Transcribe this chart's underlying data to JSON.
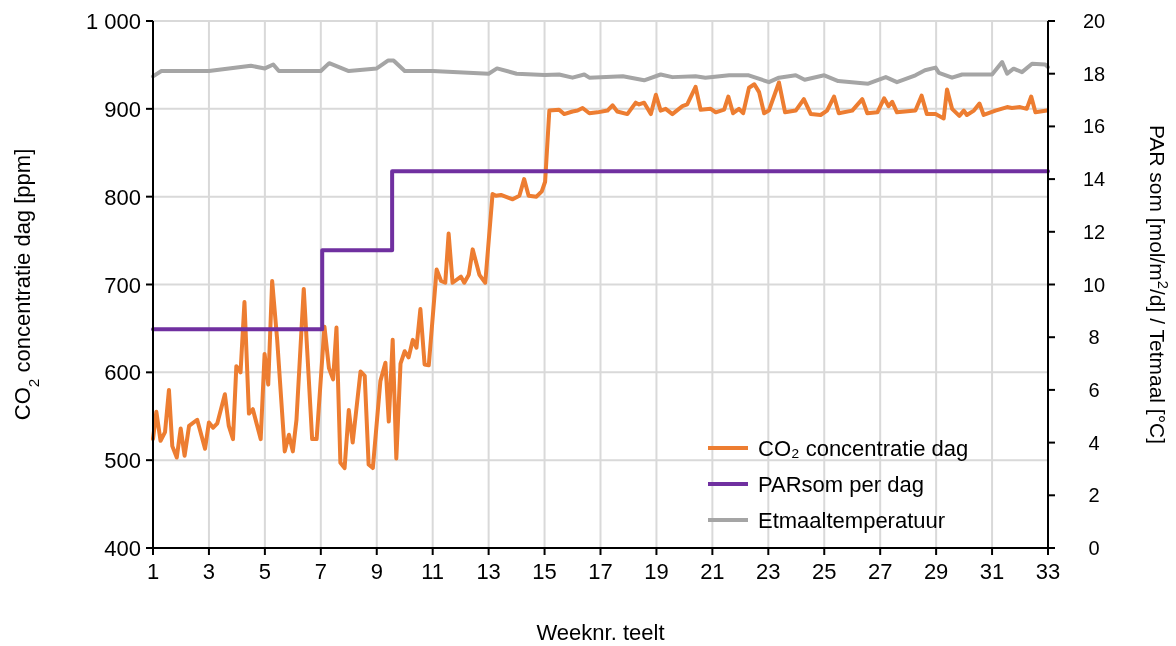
{
  "chart_data": {
    "type": "line",
    "xlabel": "Weeknr. teelt",
    "ylabel": "CO$_{2}$ concentratie dag [ppm]",
    "y2label": "PAR som [mol/m$^{2}$/d] / Tetmaal [°C]",
    "xlim": [
      1,
      33
    ],
    "xticks": [
      1,
      3,
      5,
      7,
      9,
      11,
      13,
      15,
      17,
      19,
      21,
      23,
      25,
      27,
      29,
      31,
      33
    ],
    "ylim": [
      400,
      1000
    ],
    "yticks": [
      {
        "value": 400,
        "label": "400"
      },
      {
        "value": 500,
        "label": "500"
      },
      {
        "value": 600,
        "label": "600"
      },
      {
        "value": 700,
        "label": "700"
      },
      {
        "value": 800,
        "label": "800"
      },
      {
        "value": 900,
        "label": "900"
      },
      {
        "value": 1000,
        "label": "1 000"
      }
    ],
    "y2lim": [
      0,
      20
    ],
    "y2ticks": [
      0,
      2,
      4,
      6,
      8,
      10,
      12,
      14,
      16,
      18,
      20
    ],
    "grid": true,
    "legend": "bottom right",
    "line_style": "solid",
    "series": [
      {
        "name": "CO₂ concentratie dag",
        "color": "#ed7d31",
        "axis": "y",
        "x": [
          1.0,
          1.12,
          1.27,
          1.43,
          1.57,
          1.69,
          1.85,
          1.99,
          2.13,
          2.29,
          2.58,
          2.86,
          3.0,
          3.15,
          3.3,
          3.57,
          3.71,
          3.86,
          3.98,
          4.13,
          4.27,
          4.43,
          4.57,
          4.85,
          4.99,
          5.12,
          5.26,
          5.44,
          5.71,
          5.86,
          6.0,
          6.13,
          6.39,
          6.69,
          6.85,
          7.13,
          7.29,
          7.44,
          7.56,
          7.7,
          7.85,
          8.0,
          8.14,
          8.42,
          8.57,
          8.71,
          8.86,
          9.13,
          9.31,
          9.43,
          9.57,
          9.7,
          9.85,
          10.0,
          10.14,
          10.29,
          10.42,
          10.56,
          10.71,
          10.86,
          11.14,
          11.3,
          11.45,
          11.57,
          11.71,
          12.01,
          12.13,
          12.29,
          12.43,
          12.67,
          12.88,
          13.14,
          13.26,
          13.44,
          13.86,
          14.1,
          14.27,
          14.43,
          14.71,
          14.9,
          15.02,
          15.17,
          15.52,
          15.7,
          16.0,
          16.18,
          16.36,
          16.6,
          16.89,
          17.25,
          17.43,
          17.6,
          17.96,
          18.26,
          18.38,
          18.56,
          18.8,
          18.98,
          19.15,
          19.33,
          19.57,
          19.93,
          20.1,
          20.4,
          20.58,
          20.94,
          21.12,
          21.42,
          21.57,
          21.74,
          21.95,
          22.1,
          22.31,
          22.5,
          22.67,
          22.85,
          23.02,
          23.38,
          23.6,
          23.98,
          24.27,
          24.52,
          24.87,
          25.1,
          25.35,
          25.52,
          26.0,
          26.36,
          26.54,
          26.9,
          27.14,
          27.3,
          27.43,
          27.6,
          28.26,
          28.48,
          28.67,
          28.98,
          29.27,
          29.39,
          29.57,
          29.83,
          29.99,
          30.1,
          30.35,
          30.55,
          30.7,
          31.12,
          31.54,
          31.71,
          32.0,
          32.24,
          32.4,
          32.55,
          32.96
        ],
        "values": [
          524,
          555,
          522,
          532,
          580,
          516,
          503,
          536,
          505,
          539,
          546,
          513,
          543,
          537,
          542,
          575,
          539,
          524,
          607,
          600,
          680,
          553,
          558,
          524,
          621,
          586,
          704,
          637,
          510,
          529,
          510,
          546,
          695,
          524,
          524,
          652,
          605,
          592,
          651,
          497,
          491,
          557,
          520,
          601,
          596,
          495,
          491,
          590,
          611,
          544,
          637,
          502,
          610,
          624,
          617,
          637,
          628,
          672,
          609,
          608,
          717,
          704,
          702,
          758,
          702,
          709,
          702,
          711,
          740,
          711,
          702,
          803,
          801,
          802,
          797,
          801,
          820,
          801,
          800,
          806,
          817,
          898,
          899,
          894,
          897,
          898,
          901,
          895,
          896,
          898,
          904,
          897,
          894,
          907,
          905,
          907,
          894,
          916,
          898,
          900,
          894,
          903,
          905,
          925,
          899,
          900,
          896,
          899,
          914,
          895,
          900,
          895,
          924,
          928,
          919,
          895,
          898,
          930,
          896,
          898,
          911,
          894,
          893,
          898,
          914,
          895,
          898,
          911,
          895,
          896,
          912,
          903,
          908,
          896,
          898,
          915,
          894,
          894,
          889,
          922,
          900,
          892,
          898,
          893,
          898,
          906,
          893,
          898,
          902,
          901,
          902,
          900,
          914,
          896,
          898
        ]
      },
      {
        "name": "PARsom per dag",
        "color": "#7030a0",
        "axis": "y2",
        "type": "step",
        "x": [
          1,
          7.05,
          9.55,
          33
        ],
        "values": [
          8.3,
          11.3,
          14.3,
          14.3
        ]
      },
      {
        "name": "Etmaaltemperatuur",
        "color": "#a5a5a5",
        "axis": "y2",
        "x": [
          1,
          1.3,
          3,
          4.5,
          5,
          5.3,
          5.5,
          7,
          7.3,
          8,
          9,
          9.4,
          9.6,
          10,
          11,
          13,
          13.3,
          14,
          15,
          15.52,
          16.0,
          16.42,
          16.6,
          17.8,
          18.56,
          19.15,
          19.57,
          20.4,
          20.75,
          21.6,
          22.3,
          23.02,
          23.38,
          23.98,
          24.3,
          25.0,
          25.5,
          26.57,
          27.2,
          27.6,
          28.26,
          28.6,
          28.98,
          29.1,
          29.57,
          29.93,
          31.0,
          31.36,
          31.54,
          31.77,
          32.07,
          32.43,
          32.9,
          33.0
        ],
        "values": [
          17.9,
          18.1,
          18.1,
          18.3,
          18.2,
          18.35,
          18.1,
          18.1,
          18.4,
          18.1,
          18.2,
          18.5,
          18.5,
          18.1,
          18.1,
          18.0,
          18.2,
          18.0,
          17.95,
          17.97,
          17.85,
          17.97,
          17.85,
          17.9,
          17.75,
          17.97,
          17.87,
          17.9,
          17.85,
          17.94,
          17.94,
          17.68,
          17.85,
          17.94,
          17.77,
          17.94,
          17.72,
          17.62,
          17.87,
          17.68,
          17.94,
          18.13,
          18.23,
          18.03,
          17.85,
          17.97,
          17.97,
          18.44,
          18.0,
          18.19,
          18.06,
          18.38,
          18.35,
          18.25
        ]
      }
    ]
  }
}
